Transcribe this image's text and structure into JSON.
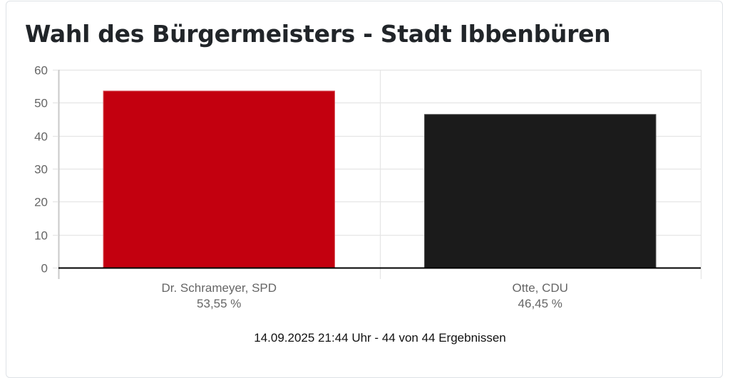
{
  "title": "Wahl des Bürgermeisters - Stadt Ibbenbüren",
  "footer": "14.09.2025 21:44 Uhr - 44 von 44 Ergebnissen",
  "colors": {
    "spd": "#c3000f",
    "cdu": "#1b1b1b",
    "grid": "#e5e5e5",
    "axis": "#000000",
    "tick_label": "#666666"
  },
  "chart_data": {
    "type": "bar",
    "title": "Wahl des Bürgermeisters - Stadt Ibbenbüren",
    "xlabel": "",
    "ylabel": "",
    "categories": [
      "Dr. Schrameyer, SPD",
      "Otte, CDU"
    ],
    "category_values_text": [
      "53,55 %",
      "46,45 %"
    ],
    "values": [
      53.55,
      46.45
    ],
    "bar_colors": [
      "#c3000f",
      "#1b1b1b"
    ],
    "ylim": [
      0,
      60
    ],
    "yticks": [
      0,
      10,
      20,
      30,
      40,
      50,
      60
    ],
    "grid": true,
    "legend": null,
    "footnote": "14.09.2025 21:44 Uhr - 44 von 44 Ergebnissen"
  }
}
